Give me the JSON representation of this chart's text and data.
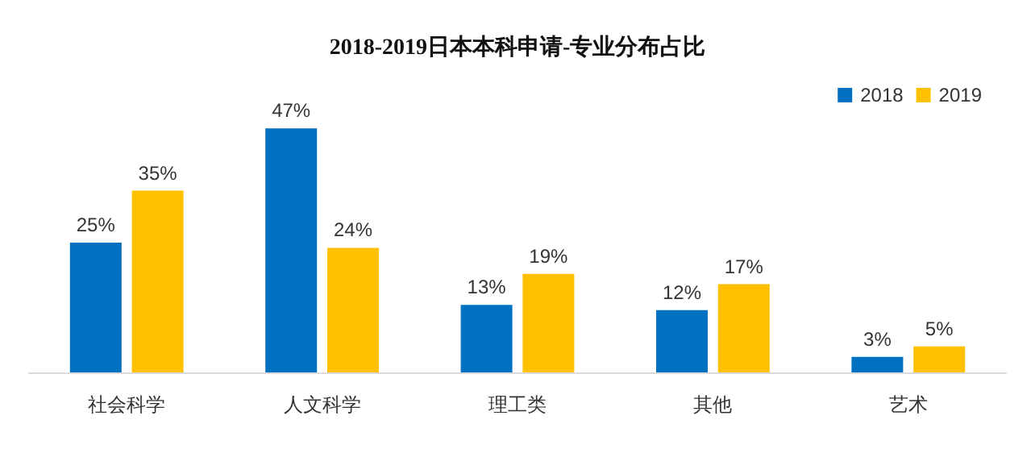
{
  "chart_data": {
    "type": "bar",
    "title": "2018-2019日本本科申请-专业分布占比",
    "categories": [
      "社会科学",
      "人文科学",
      "理工类",
      "其他",
      "艺术"
    ],
    "series": [
      {
        "name": "2018",
        "color": "#0070c0",
        "values": [
          25,
          47,
          13,
          12,
          3
        ],
        "value_labels": [
          "25%",
          "47%",
          "13%",
          "12%",
          "3%"
        ]
      },
      {
        "name": "2019",
        "color": "#ffc000",
        "values": [
          35,
          24,
          19,
          17,
          5
        ],
        "value_labels": [
          "35%",
          "24%",
          "19%",
          "17%",
          "5%"
        ]
      }
    ],
    "legend": "top right"
  }
}
